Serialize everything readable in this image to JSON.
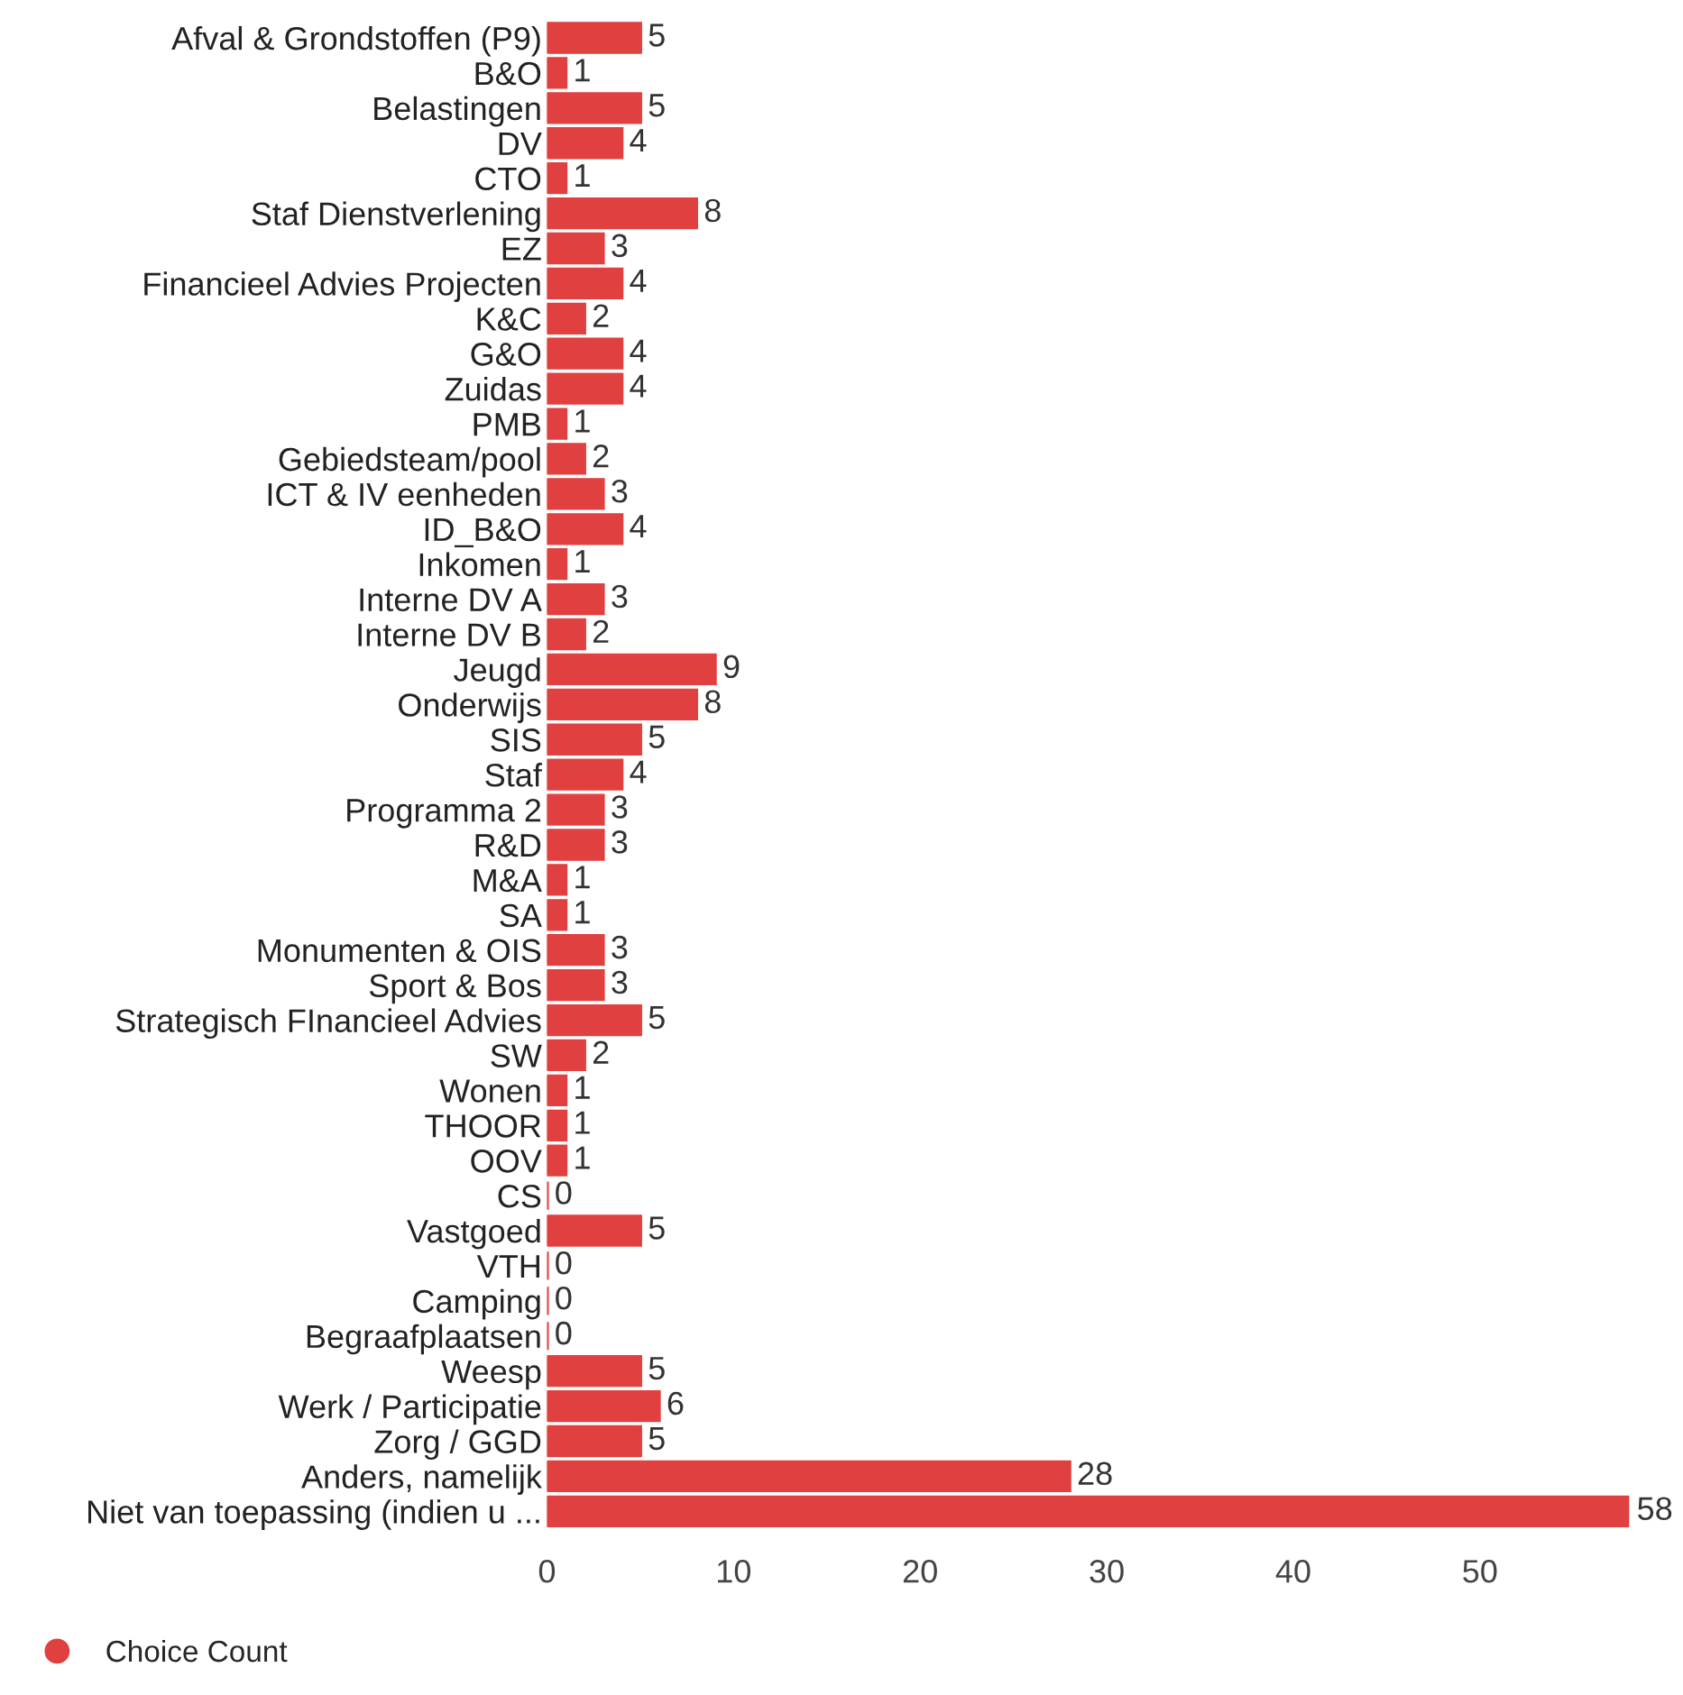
{
  "chart_data": {
    "type": "bar",
    "orientation": "horizontal",
    "categories": [
      "Afval & Grondstoffen (P9)",
      "B&O",
      "Belastingen",
      "DV",
      "CTO",
      "Staf Dienstverlening",
      "EZ",
      "Financieel Advies Projecten",
      "K&C",
      "G&O",
      "Zuidas",
      "PMB",
      "Gebiedsteam/pool",
      "ICT & IV eenheden",
      "ID_B&O",
      "Inkomen",
      "Interne DV A",
      "Interne DV B",
      "Jeugd",
      "Onderwijs",
      "SIS",
      "Staf",
      "Programma 2",
      "R&D",
      "M&A",
      "SA",
      "Monumenten & OIS",
      "Sport & Bos",
      "Strategisch FInancieel Advies",
      "SW",
      "Wonen",
      "THOOR",
      "OOV",
      "CS",
      "Vastgoed",
      "VTH",
      "Camping",
      "Begraafplaatsen",
      "Weesp",
      "Werk / Participatie",
      "Zorg / GGD",
      "Anders, namelijk",
      "Niet van toepassing (indien u ..."
    ],
    "series": [
      {
        "name": "Choice Count",
        "color": "#e0403f",
        "values": [
          5,
          1,
          5,
          4,
          1,
          8,
          3,
          4,
          2,
          4,
          4,
          1,
          2,
          3,
          4,
          1,
          3,
          2,
          9,
          8,
          5,
          4,
          3,
          3,
          1,
          1,
          3,
          3,
          5,
          2,
          1,
          1,
          1,
          0,
          5,
          0,
          0,
          0,
          5,
          6,
          5,
          28,
          58
        ]
      }
    ],
    "xlim": [
      0,
      58
    ],
    "xticks": [
      0,
      10,
      20,
      30,
      40,
      50
    ],
    "data_labels": true,
    "grid": false,
    "legend": "bottom left"
  }
}
